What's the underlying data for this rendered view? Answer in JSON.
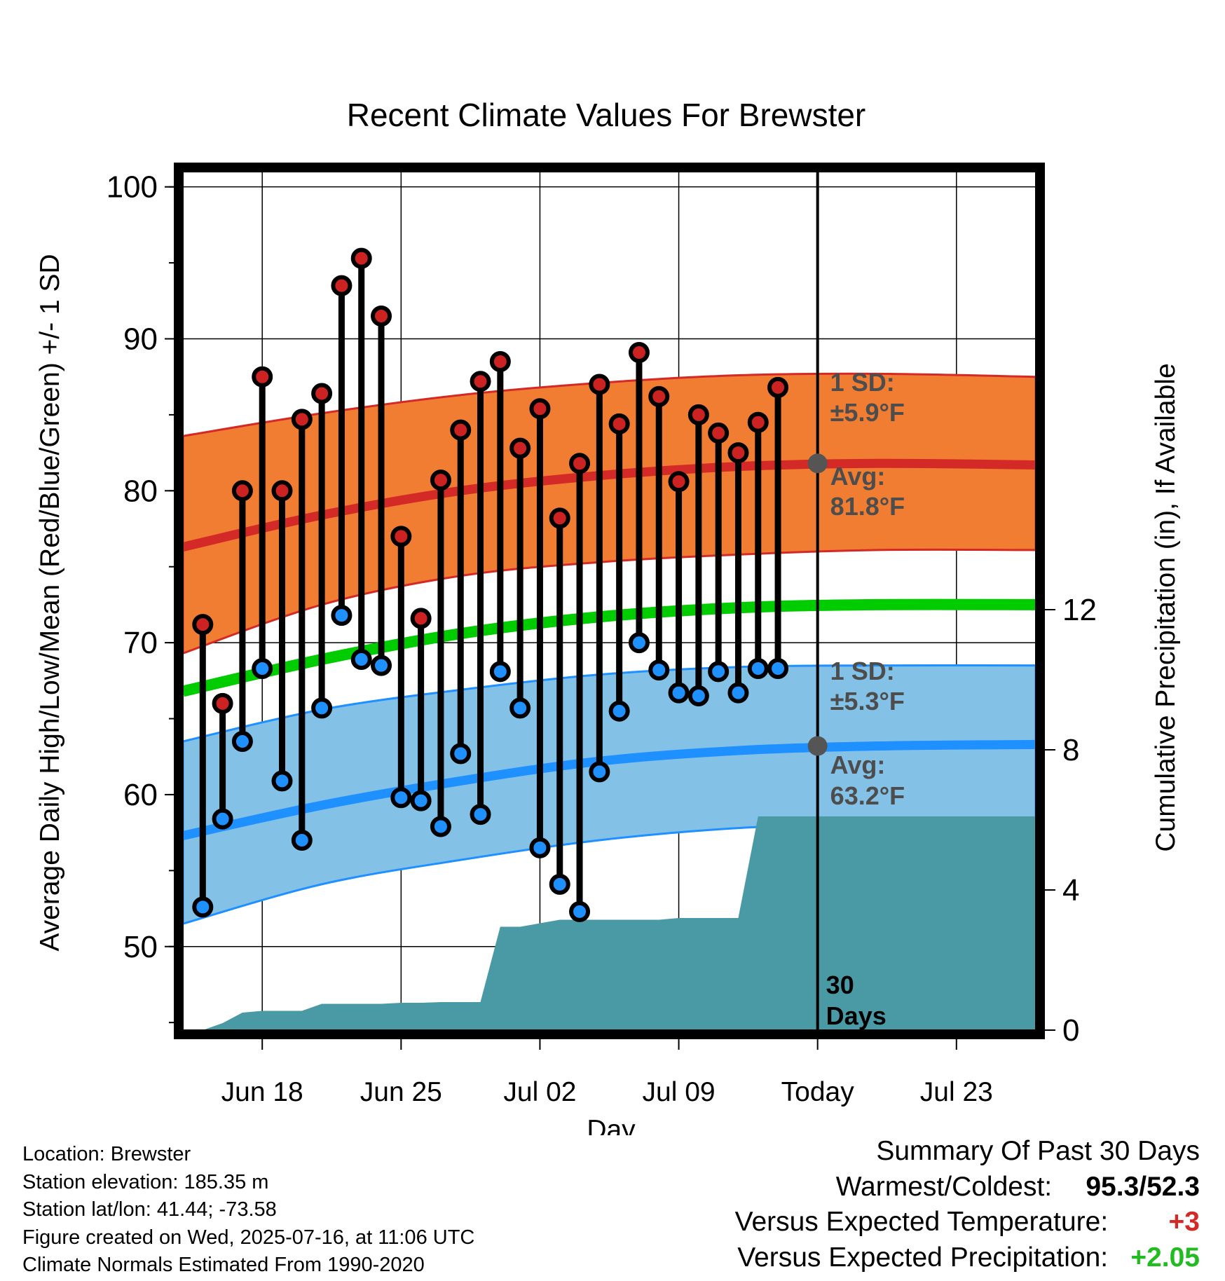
{
  "chart_data": {
    "type": "line",
    "title": "Recent Climate Values For Brewster",
    "xlabel": "Day",
    "ylabel": "Average Daily High/Low/Mean (Red/Blue/Green) +/- 1 SD",
    "y2label": "Cumulative Precipitation (in), If Available",
    "ylim": [
      44.5,
      101
    ],
    "y_ticks": [
      50,
      60,
      70,
      80,
      90,
      100
    ],
    "y2lim": [
      0,
      24.5
    ],
    "y2_ticks": [
      0,
      4,
      8,
      12
    ],
    "xlim": [
      "2025-06-14",
      "2025-07-27"
    ],
    "x_ticks": [
      {
        "date": "2025-06-18",
        "label": "Jun 18"
      },
      {
        "date": "2025-06-25",
        "label": "Jun 25"
      },
      {
        "date": "2025-07-02",
        "label": "Jul 02"
      },
      {
        "date": "2025-07-09",
        "label": "Jul 09"
      },
      {
        "date": "2025-07-16",
        "label": "Today"
      },
      {
        "date": "2025-07-23",
        "label": "Jul 23"
      }
    ],
    "grid": true,
    "today_marker": {
      "date": "2025-07-16",
      "label_line1": "30",
      "label_line2": "Days"
    },
    "colors": {
      "high_band": "#f07d32",
      "high_line": "#d42a27",
      "low_band": "#83c1e6",
      "low_line": "#1e90ff",
      "mean_line": "#00cc00",
      "precip_area": "#4a9aa6",
      "high_dot": "#cc2222",
      "low_dot": "#1e90ff"
    },
    "normals": {
      "x": [
        "2025-06-14",
        "2025-06-21",
        "2025-06-28",
        "2025-07-05",
        "2025-07-12",
        "2025-07-19",
        "2025-07-27"
      ],
      "avg_high": [
        76.3,
        78.4,
        80.0,
        81.0,
        81.6,
        81.8,
        81.7
      ],
      "high_sd_upper": [
        83.6,
        85.1,
        86.3,
        87.1,
        87.6,
        87.7,
        87.5
      ],
      "high_sd_lower": [
        69.3,
        72.5,
        74.4,
        75.3,
        75.8,
        76.1,
        76.1
      ],
      "avg_mean": [
        66.8,
        68.9,
        70.6,
        71.7,
        72.3,
        72.5,
        72.5
      ],
      "avg_low": [
        57.3,
        59.3,
        60.9,
        62.2,
        62.9,
        63.2,
        63.3
      ],
      "low_sd_upper": [
        63.5,
        65.6,
        66.9,
        67.9,
        68.4,
        68.5,
        68.5
      ],
      "low_sd_lower": [
        51.5,
        54.1,
        55.7,
        57.0,
        57.8,
        58.1,
        58.2
      ]
    },
    "series": [
      {
        "name": "High",
        "x": [
          "2025-06-15",
          "2025-06-16",
          "2025-06-17",
          "2025-06-18",
          "2025-06-19",
          "2025-06-20",
          "2025-06-21",
          "2025-06-22",
          "2025-06-23",
          "2025-06-24",
          "2025-06-25",
          "2025-06-26",
          "2025-06-27",
          "2025-06-28",
          "2025-06-29",
          "2025-06-30",
          "2025-07-01",
          "2025-07-02",
          "2025-07-03",
          "2025-07-04",
          "2025-07-05",
          "2025-07-06",
          "2025-07-07",
          "2025-07-08",
          "2025-07-09",
          "2025-07-10",
          "2025-07-11",
          "2025-07-12",
          "2025-07-13",
          "2025-07-14",
          "2025-07-15"
        ],
        "values": [
          71.2,
          66.0,
          80.0,
          87.5,
          80.0,
          84.7,
          86.4,
          93.5,
          95.3,
          91.5,
          77.0,
          71.6,
          80.7,
          84.0,
          87.2,
          88.5,
          82.8,
          85.4,
          78.2,
          81.8,
          87.0,
          84.4,
          89.1,
          86.2,
          80.6,
          85.0,
          83.8,
          82.5,
          84.5,
          86.8,
          null
        ]
      },
      {
        "name": "Low",
        "x": [
          "2025-06-15",
          "2025-06-16",
          "2025-06-17",
          "2025-06-18",
          "2025-06-19",
          "2025-06-20",
          "2025-06-21",
          "2025-06-22",
          "2025-06-23",
          "2025-06-24",
          "2025-06-25",
          "2025-06-26",
          "2025-06-27",
          "2025-06-28",
          "2025-06-29",
          "2025-06-30",
          "2025-07-01",
          "2025-07-02",
          "2025-07-03",
          "2025-07-04",
          "2025-07-05",
          "2025-07-06",
          "2025-07-07",
          "2025-07-08",
          "2025-07-09",
          "2025-07-10",
          "2025-07-11",
          "2025-07-12",
          "2025-07-13",
          "2025-07-14",
          "2025-07-15"
        ],
        "values": [
          52.6,
          58.4,
          63.5,
          68.3,
          60.9,
          57.0,
          65.7,
          71.8,
          68.9,
          68.5,
          59.8,
          59.6,
          57.9,
          62.7,
          58.7,
          68.1,
          65.7,
          56.5,
          54.1,
          52.3,
          61.5,
          65.5,
          70.0,
          68.2,
          66.7,
          66.5,
          68.1,
          66.7,
          68.3,
          68.3,
          null
        ]
      }
    ],
    "precip_cumulative": {
      "x": [
        "2025-06-15",
        "2025-06-16",
        "2025-06-17",
        "2025-06-18",
        "2025-06-19",
        "2025-06-20",
        "2025-06-21",
        "2025-06-22",
        "2025-06-23",
        "2025-06-24",
        "2025-06-25",
        "2025-06-26",
        "2025-06-27",
        "2025-06-28",
        "2025-06-29",
        "2025-06-30",
        "2025-07-01",
        "2025-07-02",
        "2025-07-03",
        "2025-07-04",
        "2025-07-05",
        "2025-07-06",
        "2025-07-07",
        "2025-07-08",
        "2025-07-09",
        "2025-07-10",
        "2025-07-11",
        "2025-07-12",
        "2025-07-13",
        "2025-07-14",
        "2025-07-15",
        "2025-07-16",
        "2025-07-27"
      ],
      "values": [
        0.0,
        0.2,
        0.5,
        0.55,
        0.55,
        0.55,
        0.75,
        0.75,
        0.75,
        0.75,
        0.78,
        0.78,
        0.8,
        0.8,
        0.8,
        2.95,
        2.95,
        3.05,
        3.15,
        3.15,
        3.15,
        3.15,
        3.15,
        3.15,
        3.2,
        3.2,
        3.2,
        3.2,
        6.1,
        6.1,
        6.1,
        6.1,
        6.1
      ]
    },
    "annotations": {
      "high_sd_line1": "1 SD:",
      "high_sd_line2": "±5.9°F",
      "high_avg_line1": "Avg:",
      "high_avg_line2": "81.8°F",
      "low_sd_line1": "1 SD:",
      "low_sd_line2": "±5.3°F",
      "low_avg_line1": "Avg:",
      "low_avg_line2": "63.2°F"
    }
  },
  "footer_left": {
    "location": "Location: Brewster",
    "elevation": "Station elevation: 185.35 m",
    "latlon": "Station lat/lon: 41.44; -73.58",
    "created": "Figure created on Wed, 2025-07-16, at 11:06 UTC",
    "normals": "Climate Normals Estimated From 1990-2020"
  },
  "summary": {
    "title": "Summary Of Past 30 Days",
    "warmest_label": "Warmest/Coldest:",
    "warmest_value": "95.3/52.3",
    "temp_label": "Versus Expected Temperature:",
    "temp_value": "+3",
    "temp_color": "#d42a27",
    "precip_label": "Versus Expected Precipitation:",
    "precip_value": "+2.05",
    "precip_color": "#22bb22"
  }
}
